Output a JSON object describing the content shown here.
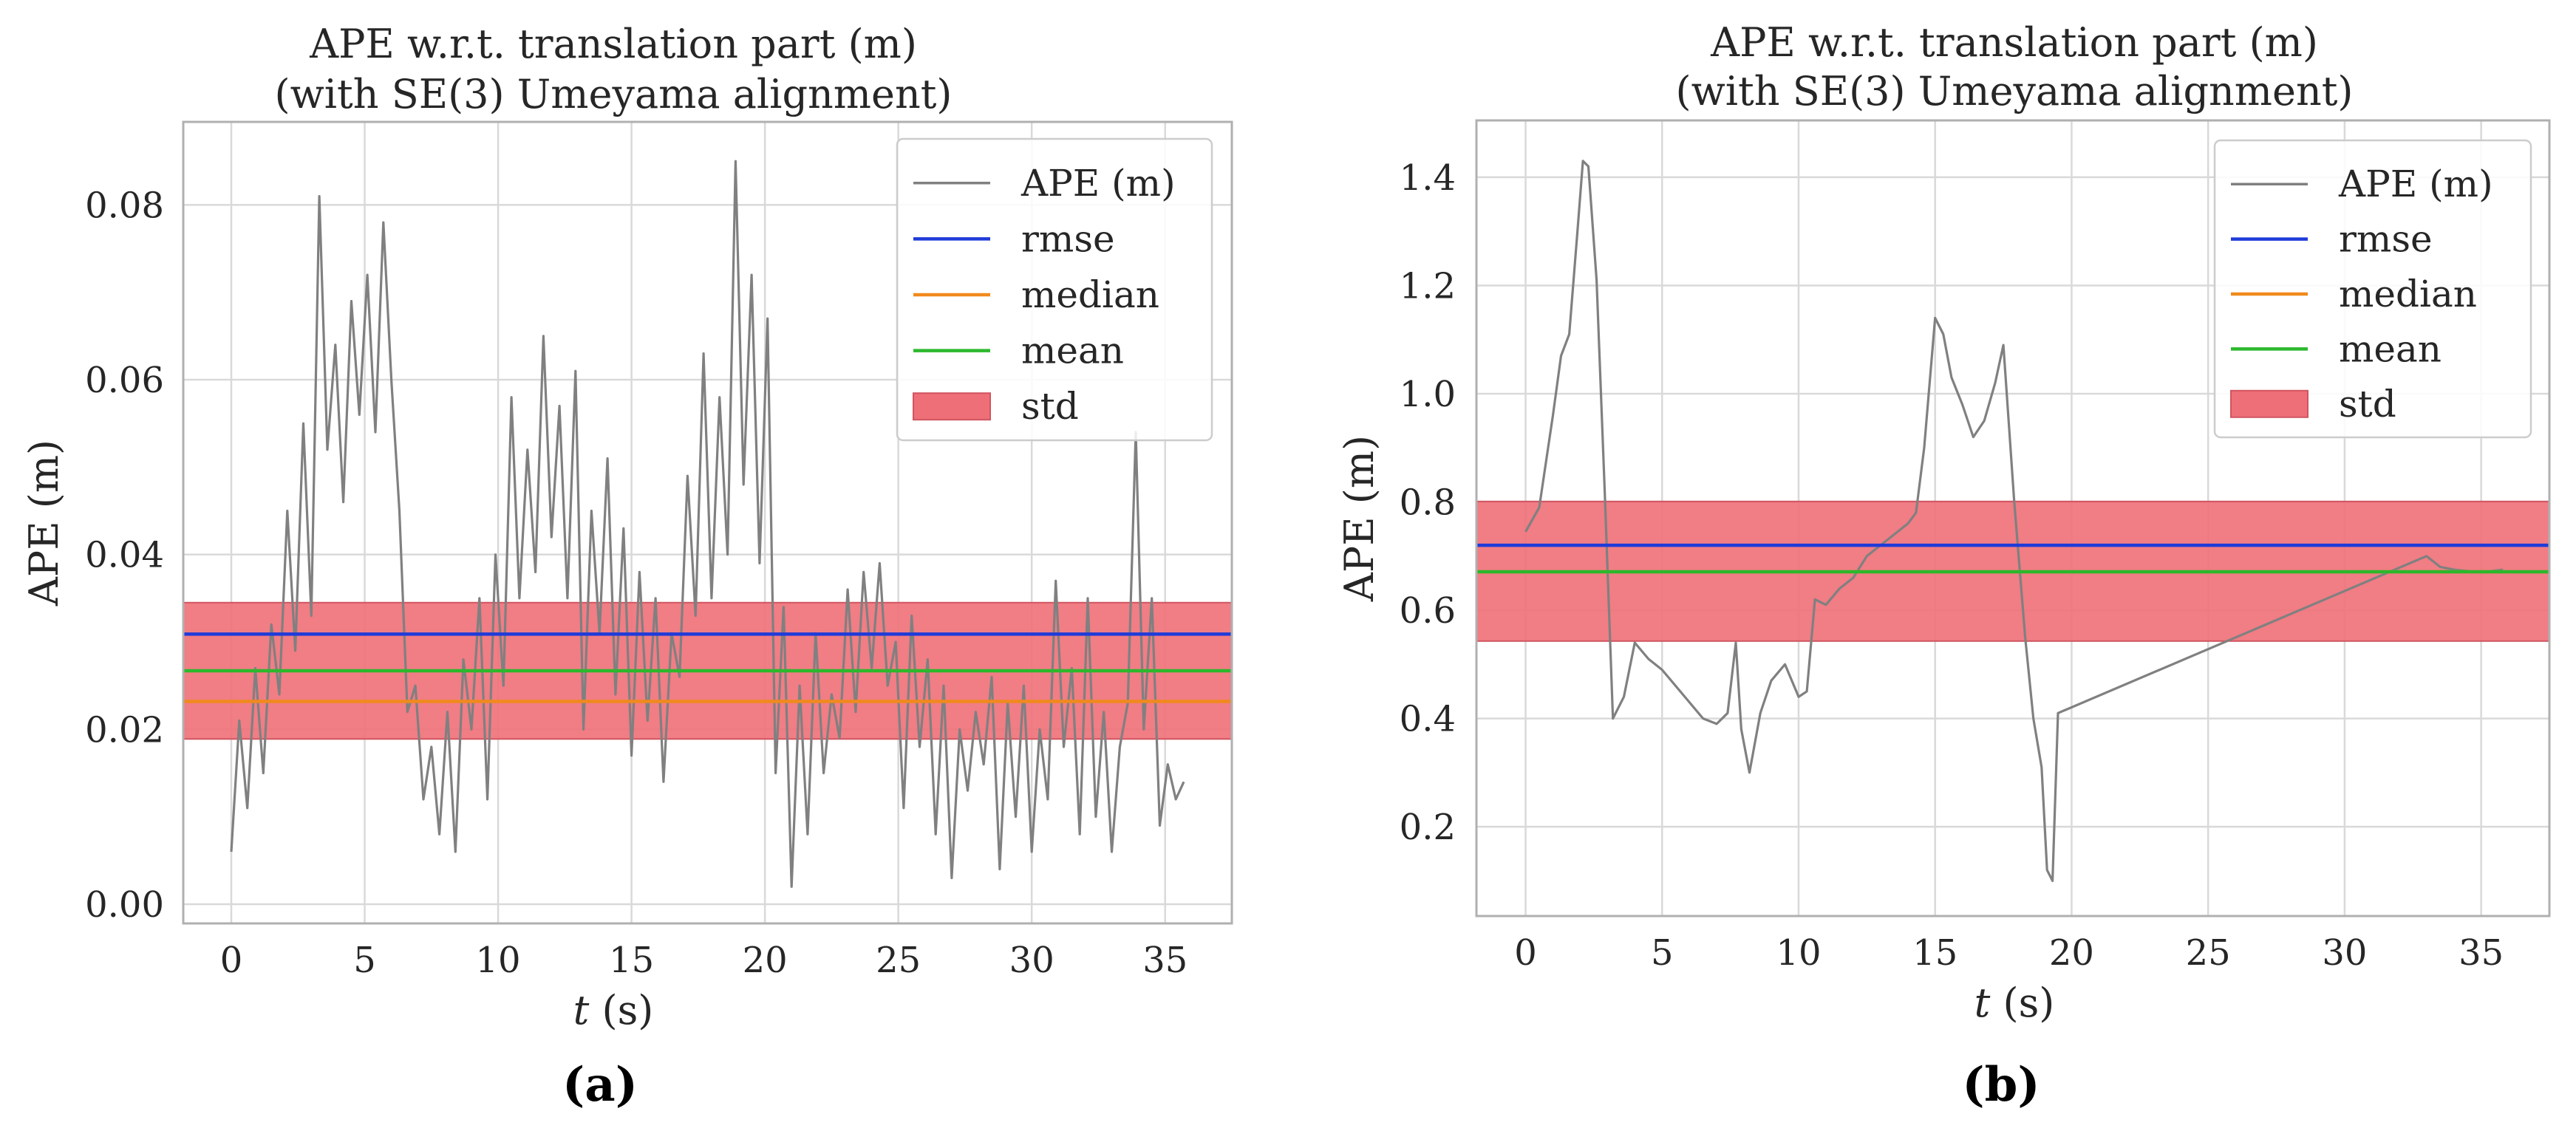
{
  "chart_data": [
    {
      "type": "line",
      "panel_label": "(a)",
      "title_lines": [
        "APE w.r.t. translation part (m)",
        "(with SE(3) Umeyama alignment)"
      ],
      "xlabel_var": "t",
      "xlabel_unit": " (s)",
      "ylabel": "APE (m)",
      "xlim": [
        -1.8,
        37.5
      ],
      "ylim": [
        -0.0022,
        0.0895
      ],
      "xticks": [
        0,
        5,
        10,
        15,
        20,
        25,
        30,
        35
      ],
      "xtick_labels": [
        "0",
        "5",
        "10",
        "15",
        "20",
        "25",
        "30",
        "35"
      ],
      "yticks": [
        0.0,
        0.02,
        0.04,
        0.06,
        0.08
      ],
      "ytick_labels": [
        "0.00",
        "0.02",
        "0.04",
        "0.06",
        "0.08"
      ],
      "grid": true,
      "legend_position": "top-right",
      "legend": [
        "APE (m)",
        "rmse",
        "median",
        "mean",
        "std"
      ],
      "stats": {
        "rmse": 0.0309,
        "median": 0.0232,
        "mean": 0.0267,
        "std_band": [
          0.0189,
          0.0345
        ]
      },
      "series": [
        {
          "name": "APE (m)",
          "x": [
            0,
            0.3,
            0.6,
            0.9,
            1.2,
            1.5,
            1.8,
            2.1,
            2.4,
            2.7,
            3.0,
            3.3,
            3.6,
            3.9,
            4.2,
            4.5,
            4.8,
            5.1,
            5.4,
            5.7,
            6.0,
            6.3,
            6.6,
            6.9,
            7.2,
            7.5,
            7.8,
            8.1,
            8.4,
            8.7,
            9.0,
            9.3,
            9.6,
            9.9,
            10.2,
            10.5,
            10.8,
            11.1,
            11.4,
            11.7,
            12.0,
            12.3,
            12.6,
            12.9,
            13.2,
            13.5,
            13.8,
            14.1,
            14.4,
            14.7,
            15.0,
            15.3,
            15.6,
            15.9,
            16.2,
            16.5,
            16.8,
            17.1,
            17.4,
            17.7,
            18.0,
            18.3,
            18.6,
            18.9,
            19.2,
            19.5,
            19.8,
            20.1,
            20.4,
            20.7,
            21.0,
            21.3,
            21.6,
            21.9,
            22.2,
            22.5,
            22.8,
            23.1,
            23.4,
            23.7,
            24.0,
            24.3,
            24.6,
            24.9,
            25.2,
            25.5,
            25.8,
            26.1,
            26.4,
            26.7,
            27.0,
            27.3,
            27.6,
            27.9,
            28.2,
            28.5,
            28.8,
            29.1,
            29.4,
            29.7,
            30.0,
            30.3,
            30.6,
            30.9,
            31.2,
            31.5,
            31.8,
            32.1,
            32.4,
            32.7,
            33.0,
            33.3,
            33.6,
            33.9,
            34.2,
            34.5,
            34.8,
            35.1,
            35.4,
            35.7
          ],
          "values": [
            0.006,
            0.021,
            0.011,
            0.027,
            0.015,
            0.032,
            0.024,
            0.045,
            0.029,
            0.055,
            0.033,
            0.081,
            0.052,
            0.064,
            0.046,
            0.069,
            0.056,
            0.072,
            0.054,
            0.078,
            0.06,
            0.045,
            0.022,
            0.025,
            0.012,
            0.018,
            0.008,
            0.022,
            0.006,
            0.028,
            0.02,
            0.035,
            0.012,
            0.04,
            0.025,
            0.058,
            0.035,
            0.052,
            0.038,
            0.065,
            0.042,
            0.057,
            0.035,
            0.061,
            0.02,
            0.045,
            0.031,
            0.051,
            0.024,
            0.043,
            0.017,
            0.038,
            0.021,
            0.035,
            0.014,
            0.031,
            0.026,
            0.049,
            0.033,
            0.063,
            0.035,
            0.058,
            0.04,
            0.085,
            0.048,
            0.072,
            0.039,
            0.067,
            0.015,
            0.034,
            0.002,
            0.025,
            0.008,
            0.031,
            0.015,
            0.024,
            0.019,
            0.036,
            0.022,
            0.038,
            0.027,
            0.039,
            0.025,
            0.03,
            0.011,
            0.033,
            0.018,
            0.028,
            0.008,
            0.025,
            0.003,
            0.02,
            0.013,
            0.022,
            0.016,
            0.026,
            0.004,
            0.023,
            0.01,
            0.025,
            0.006,
            0.02,
            0.012,
            0.037,
            0.018,
            0.027,
            0.008,
            0.035,
            0.01,
            0.022,
            0.006,
            0.018,
            0.023,
            0.054,
            0.02,
            0.035,
            0.009,
            0.016,
            0.012,
            0.014
          ]
        }
      ]
    },
    {
      "type": "line",
      "panel_label": "(b)",
      "title_lines": [
        "APE w.r.t. translation part (m)",
        "(with SE(3) Umeyama alignment)"
      ],
      "xlabel_var": "t",
      "xlabel_unit": " (s)",
      "ylabel": "APE (m)",
      "xlim": [
        -1.8,
        37.5
      ],
      "ylim": [
        0.035,
        1.505
      ],
      "xticks": [
        0,
        5,
        10,
        15,
        20,
        25,
        30,
        35
      ],
      "xtick_labels": [
        "0",
        "5",
        "10",
        "15",
        "20",
        "25",
        "30",
        "35"
      ],
      "yticks": [
        0.2,
        0.4,
        0.6,
        0.8,
        1.0,
        1.2,
        1.4
      ],
      "ytick_labels": [
        "0.2",
        "0.4",
        "0.6",
        "0.8",
        "1.0",
        "1.2",
        "1.4"
      ],
      "grid": true,
      "legend_position": "top-right",
      "legend": [
        "APE (m)",
        "rmse",
        "median",
        "mean",
        "std"
      ],
      "stats": {
        "rmse": 0.72,
        "median": 0.671,
        "mean": 0.671,
        "std_band": [
          0.543,
          0.801
        ]
      },
      "series": [
        {
          "name": "APE (m)",
          "x": [
            0,
            0.5,
            1.0,
            1.3,
            1.6,
            1.9,
            2.1,
            2.3,
            2.6,
            2.9,
            3.2,
            3.6,
            4.0,
            4.5,
            5.0,
            5.5,
            6.0,
            6.5,
            7.0,
            7.4,
            7.7,
            7.9,
            8.2,
            8.6,
            9.0,
            9.5,
            10.0,
            10.3,
            10.6,
            11.0,
            11.5,
            12.0,
            12.5,
            13.0,
            13.5,
            14.0,
            14.3,
            14.6,
            15.0,
            15.3,
            15.6,
            16.0,
            16.4,
            16.8,
            17.2,
            17.5,
            17.9,
            18.3,
            18.6,
            18.9,
            19.1,
            19.3,
            19.5,
            33.0,
            33.5,
            34.0,
            35.0,
            35.8
          ],
          "values": [
            0.745,
            0.79,
            0.96,
            1.07,
            1.11,
            1.3,
            1.43,
            1.42,
            1.21,
            0.82,
            0.4,
            0.44,
            0.54,
            0.51,
            0.49,
            0.46,
            0.43,
            0.4,
            0.39,
            0.41,
            0.54,
            0.38,
            0.3,
            0.41,
            0.47,
            0.5,
            0.44,
            0.45,
            0.62,
            0.61,
            0.64,
            0.66,
            0.7,
            0.72,
            0.74,
            0.76,
            0.78,
            0.9,
            1.14,
            1.11,
            1.03,
            0.98,
            0.92,
            0.95,
            1.02,
            1.09,
            0.8,
            0.55,
            0.4,
            0.31,
            0.12,
            0.1,
            0.41,
            0.7,
            0.68,
            0.675,
            0.67,
            0.675
          ]
        }
      ]
    }
  ],
  "colors": {
    "ape": "#808080",
    "rmse": "#1f3bd9",
    "median": "#f08a1c",
    "mean": "#2cb82c",
    "std": "#ef6f78",
    "grid": "#d9d9d9",
    "frame": "#b0b0b0"
  }
}
